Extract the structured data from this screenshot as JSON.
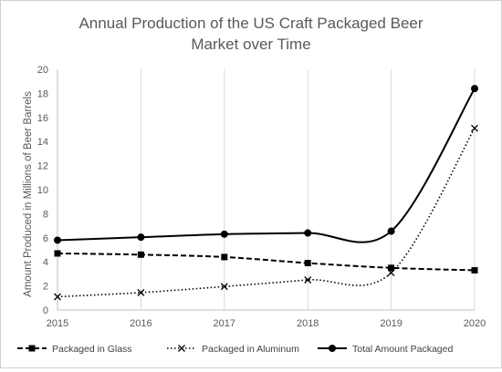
{
  "chart_data": {
    "type": "line",
    "title_lines": [
      "Annual Production of the US Craft Packaged Beer",
      "Market over Time"
    ],
    "xlabel": "",
    "ylabel": "Amount Produced in Millions of Beer Barrels",
    "x": [
      2015,
      2016,
      2017,
      2018,
      2019,
      2020
    ],
    "x_tick_labels": [
      "2015",
      "2016",
      "2017",
      "2018",
      "2019",
      "2020"
    ],
    "ylim": [
      0,
      20
    ],
    "y_ticks": [
      0,
      2,
      4,
      6,
      8,
      10,
      12,
      14,
      16,
      18,
      20
    ],
    "y_tick_labels": [
      "0",
      "2",
      "4",
      "6",
      "8",
      "10",
      "12",
      "14",
      "16",
      "18",
      "20"
    ],
    "grid": "vertical",
    "legend_position": "bottom",
    "series": [
      {
        "name": "Packaged in Glass",
        "values": [
          4.7,
          4.6,
          4.4,
          3.9,
          3.5,
          3.3
        ],
        "color": "#000000",
        "dash": "dashed",
        "marker": "square"
      },
      {
        "name": "Packaged in Aluminum",
        "values": [
          1.1,
          1.45,
          1.95,
          2.5,
          3.1,
          15.1
        ],
        "color": "#000000",
        "dash": "dotted",
        "marker": "x"
      },
      {
        "name": "Total Amount Packaged",
        "values": [
          5.8,
          6.05,
          6.3,
          6.4,
          6.55,
          18.4
        ],
        "color": "#000000",
        "dash": "solid",
        "marker": "circle"
      }
    ]
  }
}
